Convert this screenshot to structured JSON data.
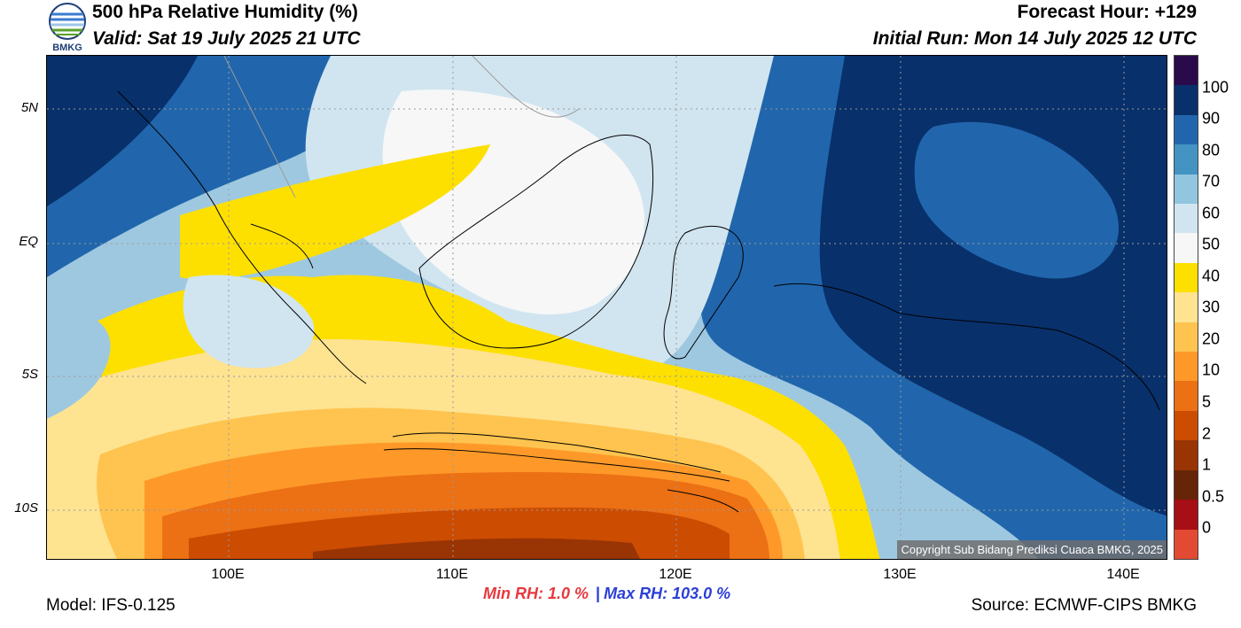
{
  "header": {
    "title": "500 hPa Relative Humidity (%)",
    "valid": "Valid: Sat 19 July 2025 21 UTC",
    "forecast_hour": "Forecast Hour: +129",
    "initial_run": "Initial Run: Mon 14 July 2025 12 UTC",
    "logo_text": "BMKG"
  },
  "map": {
    "copyright": "Copyright Sub Bidang Prediksi Cuaca BMKG, 2025",
    "lat_labels": [
      "5N",
      "EQ",
      "5S",
      "10S"
    ],
    "lon_labels": [
      "100E",
      "110E",
      "120E",
      "130E",
      "140E"
    ]
  },
  "colorbar": {
    "labels": [
      "100",
      "90",
      "80",
      "70",
      "60",
      "50",
      "40",
      "30",
      "20",
      "10",
      "5",
      "2",
      "1",
      "0.5",
      "0"
    ],
    "colors": [
      "#2a0a4a",
      "#08306b",
      "#2166ac",
      "#4393c3",
      "#92c5de",
      "#d1e5f0",
      "#f7f7f7",
      "#fde000",
      "#fee391",
      "#fec44f",
      "#fe9929",
      "#ec7014",
      "#cc4c02",
      "#993404",
      "#662506",
      "#a50f15",
      "#e34a33"
    ]
  },
  "stats": {
    "min_rh": "Min RH:   1.0 %",
    "separator": "|",
    "max_rh": "Max RH: 103.0 %"
  },
  "footer": {
    "model": "Model: IFS-0.125",
    "source": "Source: ECMWF-CIPS BMKG"
  }
}
